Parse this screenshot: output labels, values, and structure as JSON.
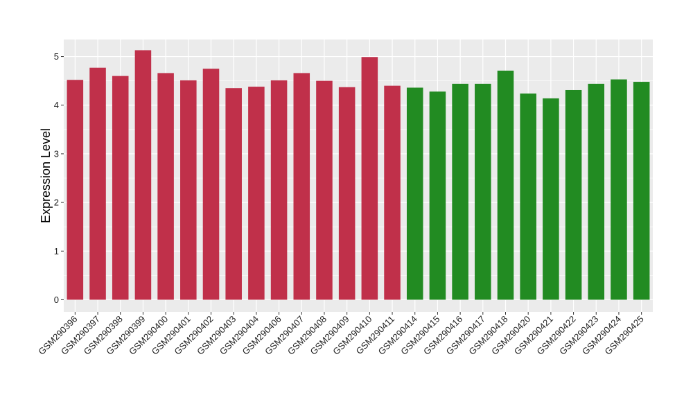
{
  "chart_data": {
    "type": "bar",
    "title": "",
    "xlabel": "",
    "ylabel": "Expression Level",
    "ylim": [
      -0.25,
      5.35
    ],
    "yticks": [
      0,
      1,
      2,
      3,
      4,
      5
    ],
    "grid": true,
    "legend": "none",
    "background_color": "#EBEBEB",
    "grid_color": "#FFFFFF",
    "colors": {
      "red": "#C0304A",
      "green": "#228B22"
    },
    "categories": [
      "GSM290396",
      "GSM290397",
      "GSM290398",
      "GSM290399",
      "GSM290400",
      "GSM290401",
      "GSM290402",
      "GSM290403",
      "GSM290404",
      "GSM290406",
      "GSM290407",
      "GSM290408",
      "GSM290409",
      "GSM290410",
      "GSM290411",
      "GSM290414",
      "GSM290415",
      "GSM290416",
      "GSM290417",
      "GSM290418",
      "GSM290420",
      "GSM290421",
      "GSM290422",
      "GSM290423",
      "GSM290424",
      "GSM290425"
    ],
    "values": [
      4.52,
      4.77,
      4.6,
      5.13,
      4.66,
      4.51,
      4.75,
      4.35,
      4.38,
      4.51,
      4.66,
      4.5,
      4.37,
      4.99,
      4.4,
      4.36,
      4.28,
      4.44,
      4.44,
      4.71,
      4.24,
      4.14,
      4.31,
      4.44,
      4.53,
      4.48
    ],
    "bar_colors": [
      "red",
      "red",
      "red",
      "red",
      "red",
      "red",
      "red",
      "red",
      "red",
      "red",
      "red",
      "red",
      "red",
      "red",
      "red",
      "green",
      "green",
      "green",
      "green",
      "green",
      "green",
      "green",
      "green",
      "green",
      "green",
      "green"
    ]
  }
}
